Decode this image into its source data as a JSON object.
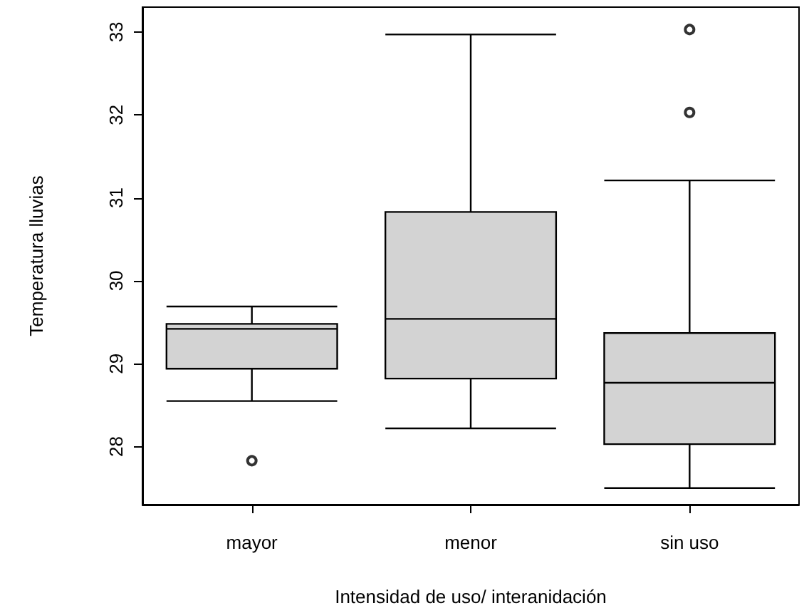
{
  "chart_data": {
    "type": "box",
    "xlabel": "Intensidad de uso/ interanidación",
    "ylabel": "Temperatura lluvias",
    "categories": [
      "mayor",
      "menor",
      "sin uso"
    ],
    "color": "#d3d3d3",
    "boxes": [
      {
        "low": 28.55,
        "q1": 28.94,
        "median": 29.42,
        "q3": 29.48,
        "high": 29.69,
        "outliers": [
          27.83
        ]
      },
      {
        "low": 28.22,
        "q1": 28.82,
        "median": 29.54,
        "q3": 30.83,
        "high": 32.97
      },
      {
        "low": 27.5,
        "q1": 28.03,
        "median": 28.77,
        "q3": 29.37,
        "high": 31.21,
        "outliers": [
          32.03,
          33.03
        ]
      }
    ],
    "ylim": [
      27.3,
      33.3
    ],
    "yticks": [
      28,
      29,
      30,
      31,
      32,
      33
    ],
    "grid": false
  }
}
